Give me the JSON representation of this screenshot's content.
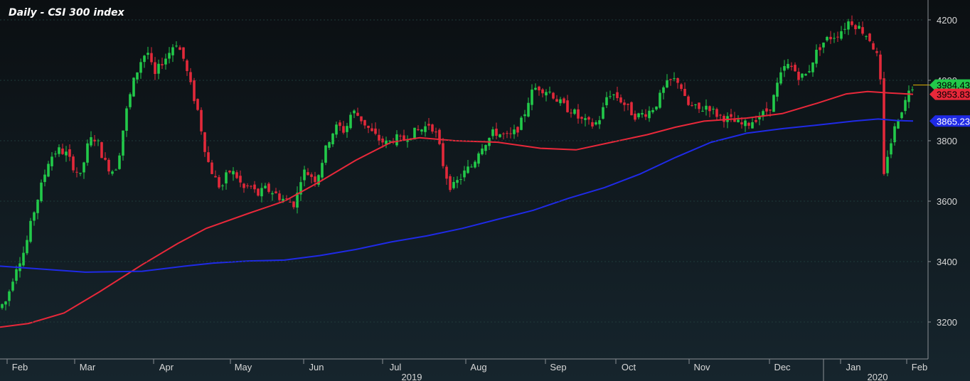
{
  "chart_data": {
    "type": "candlestick",
    "title": "Daily - CSI 300 index",
    "y_ticks": [
      3200,
      3400,
      3600,
      3800,
      4000,
      4200
    ],
    "ylim": [
      3090,
      4240
    ],
    "x_month_labels": [
      "Feb",
      "Mar",
      "Apr",
      "May",
      "Jun",
      "Jul",
      "Aug",
      "Sep",
      "Oct",
      "Nov",
      "Dec",
      "Jan",
      "Feb"
    ],
    "x_year_labels": [
      "2019",
      "2020"
    ],
    "colors": {
      "up": "#22c94a",
      "down": "#e2293a",
      "ma_short": "#e8283a",
      "ma_long": "#1f2ae6",
      "last_price_line": "#e6b400",
      "grid": "#1f3a3a",
      "background_top": "#0b0f12",
      "background_bottom": "#15232b"
    },
    "series": [
      {
        "name": "",
        "kind": "price",
        "points": [
          [
            0,
            3240
          ],
          [
            14,
            3270
          ],
          [
            27,
            3380
          ],
          [
            40,
            3440
          ],
          [
            52,
            3560
          ],
          [
            63,
            3650
          ],
          [
            74,
            3740
          ],
          [
            86,
            3770
          ],
          [
            97,
            3760
          ],
          [
            107,
            3720
          ],
          [
            118,
            3680
          ],
          [
            130,
            3800
          ],
          [
            140,
            3810
          ],
          [
            152,
            3730
          ],
          [
            162,
            3700
          ],
          [
            170,
            3720
          ],
          [
            181,
            3880
          ],
          [
            192,
            3990
          ],
          [
            202,
            4060
          ],
          [
            212,
            4100
          ],
          [
            222,
            4010
          ],
          [
            232,
            4060
          ],
          [
            240,
            4080
          ],
          [
            252,
            4130
          ],
          [
            262,
            4080
          ],
          [
            272,
            3990
          ],
          [
            283,
            3900
          ],
          [
            296,
            3740
          ],
          [
            306,
            3680
          ],
          [
            316,
            3640
          ],
          [
            326,
            3700
          ],
          [
            336,
            3690
          ],
          [
            347,
            3640
          ],
          [
            357,
            3650
          ],
          [
            367,
            3620
          ],
          [
            378,
            3640
          ],
          [
            389,
            3630
          ],
          [
            400,
            3610
          ],
          [
            410,
            3600
          ],
          [
            420,
            3590
          ],
          [
            430,
            3700
          ],
          [
            440,
            3690
          ],
          [
            450,
            3670
          ],
          [
            460,
            3750
          ],
          [
            470,
            3820
          ],
          [
            480,
            3850
          ],
          [
            490,
            3830
          ],
          [
            500,
            3900
          ],
          [
            510,
            3880
          ],
          [
            520,
            3850
          ],
          [
            530,
            3820
          ],
          [
            540,
            3800
          ],
          [
            550,
            3790
          ],
          [
            560,
            3810
          ],
          [
            570,
            3800
          ],
          [
            580,
            3820
          ],
          [
            590,
            3830
          ],
          [
            600,
            3840
          ],
          [
            610,
            3860
          ],
          [
            620,
            3810
          ],
          [
            630,
            3700
          ],
          [
            640,
            3640
          ],
          [
            650,
            3670
          ],
          [
            660,
            3700
          ],
          [
            670,
            3720
          ],
          [
            680,
            3780
          ],
          [
            690,
            3800
          ],
          [
            700,
            3830
          ],
          [
            710,
            3820
          ],
          [
            720,
            3810
          ],
          [
            730,
            3830
          ],
          [
            740,
            3870
          ],
          [
            750,
            3950
          ],
          [
            760,
            3980
          ],
          [
            770,
            3970
          ],
          [
            780,
            3960
          ],
          [
            790,
            3930
          ],
          [
            800,
            3910
          ],
          [
            810,
            3900
          ],
          [
            820,
            3870
          ],
          [
            830,
            3860
          ],
          [
            840,
            3850
          ],
          [
            850,
            3880
          ],
          [
            860,
            3960
          ],
          [
            870,
            3950
          ],
          [
            880,
            3930
          ],
          [
            890,
            3900
          ],
          [
            900,
            3880
          ],
          [
            910,
            3890
          ],
          [
            920,
            3900
          ],
          [
            930,
            3930
          ],
          [
            940,
            3980
          ],
          [
            950,
            4000
          ],
          [
            960,
            4000
          ],
          [
            970,
            3920
          ],
          [
            980,
            3910
          ],
          [
            990,
            3900
          ],
          [
            1000,
            3920
          ],
          [
            1010,
            3890
          ],
          [
            1020,
            3880
          ],
          [
            1030,
            3870
          ],
          [
            1040,
            3860
          ],
          [
            1050,
            3850
          ],
          [
            1060,
            3860
          ],
          [
            1070,
            3880
          ],
          [
            1080,
            3890
          ],
          [
            1090,
            3920
          ],
          [
            1100,
            4000
          ],
          [
            1110,
            4050
          ],
          [
            1120,
            4040
          ],
          [
            1130,
            4010
          ],
          [
            1140,
            4020
          ],
          [
            1150,
            4080
          ],
          [
            1160,
            4120
          ],
          [
            1170,
            4140
          ],
          [
            1180,
            4150
          ],
          [
            1190,
            4170
          ],
          [
            1200,
            4200
          ],
          [
            1210,
            4180
          ],
          [
            1220,
            4160
          ],
          [
            1230,
            4130
          ],
          [
            1238,
            4080
          ],
          [
            1243,
            3990
          ],
          [
            1248,
            3680
          ],
          [
            1254,
            3770
          ],
          [
            1260,
            3810
          ],
          [
            1266,
            3870
          ],
          [
            1272,
            3900
          ],
          [
            1278,
            3930
          ],
          [
            1284,
            3984.43
          ]
        ]
      },
      {
        "name": "",
        "kind": "ma_short",
        "points": [
          [
            0,
            3183
          ],
          [
            40,
            3195
          ],
          [
            90,
            3230
          ],
          [
            140,
            3300
          ],
          [
            200,
            3390
          ],
          [
            250,
            3460
          ],
          [
            290,
            3510
          ],
          [
            350,
            3560
          ],
          [
            400,
            3600
          ],
          [
            450,
            3665
          ],
          [
            500,
            3735
          ],
          [
            550,
            3795
          ],
          [
            590,
            3810
          ],
          [
            640,
            3800
          ],
          [
            700,
            3795
          ],
          [
            760,
            3775
          ],
          [
            810,
            3770
          ],
          [
            860,
            3795
          ],
          [
            910,
            3820
          ],
          [
            950,
            3845
          ],
          [
            990,
            3865
          ],
          [
            1050,
            3875
          ],
          [
            1100,
            3890
          ],
          [
            1150,
            3925
          ],
          [
            1190,
            3955
          ],
          [
            1220,
            3963
          ],
          [
            1250,
            3958
          ],
          [
            1284,
            3953.83
          ]
        ]
      },
      {
        "name": "",
        "kind": "ma_long",
        "points": [
          [
            0,
            3385
          ],
          [
            60,
            3375
          ],
          [
            120,
            3365
          ],
          [
            200,
            3368
          ],
          [
            260,
            3385
          ],
          [
            300,
            3395
          ],
          [
            350,
            3402
          ],
          [
            400,
            3405
          ],
          [
            450,
            3420
          ],
          [
            500,
            3440
          ],
          [
            550,
            3465
          ],
          [
            600,
            3485
          ],
          [
            650,
            3510
          ],
          [
            700,
            3540
          ],
          [
            750,
            3570
          ],
          [
            800,
            3610
          ],
          [
            850,
            3645
          ],
          [
            900,
            3690
          ],
          [
            950,
            3745
          ],
          [
            1000,
            3795
          ],
          [
            1050,
            3825
          ],
          [
            1100,
            3840
          ],
          [
            1150,
            3852
          ],
          [
            1200,
            3865
          ],
          [
            1235,
            3872
          ],
          [
            1260,
            3867
          ],
          [
            1284,
            3865.23
          ]
        ]
      }
    ],
    "last_values": [
      {
        "label": "3984.43",
        "value": 3984.43,
        "series": "price"
      },
      {
        "label": "3953.83",
        "value": 3953.83,
        "series": "ma_short"
      },
      {
        "label": "3865.23",
        "value": 3865.23,
        "series": "ma_long"
      }
    ]
  }
}
